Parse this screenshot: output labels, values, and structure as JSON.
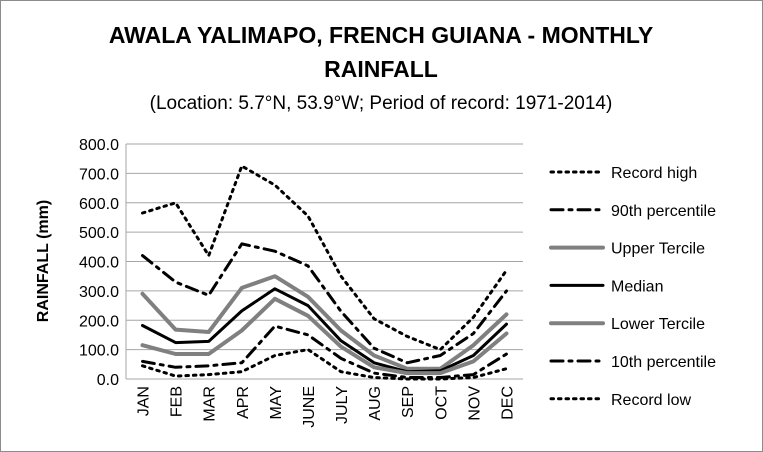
{
  "chart_data": {
    "type": "line",
    "title": "AWALA YALIMAPO, FRENCH GUIANA - MONTHLY RAINFALL",
    "title_lines": [
      "AWALA YALIMAPO, FRENCH GUIANA - MONTHLY",
      "RAINFALL"
    ],
    "subtitle": "(Location: 5.7°N, 53.9°W; Period of record: 1971-2014)",
    "xlabel": "",
    "ylabel": "RAINFALL (mm)",
    "ylim": [
      0,
      800
    ],
    "yticks": [
      "0.0",
      "100.0",
      "200.0",
      "300.0",
      "400.0",
      "500.0",
      "600.0",
      "700.0",
      "800.0"
    ],
    "categories": [
      "JAN",
      "FEB",
      "MAR",
      "APR",
      "MAY",
      "JUNE",
      "JULY",
      "AUG",
      "SEP",
      "OCT",
      "NOV",
      "DEC"
    ],
    "grid": true,
    "legend_position": "right",
    "series": [
      {
        "name": "Record high",
        "color": "#000000",
        "style": "dotted",
        "width": 3,
        "values": [
          565,
          600,
          420,
          725,
          660,
          555,
          350,
          205,
          145,
          100,
          210,
          370
        ]
      },
      {
        "name": "90th percentile",
        "color": "#000000",
        "style": "dashdot",
        "width": 3,
        "values": [
          420,
          330,
          285,
          460,
          435,
          385,
          230,
          105,
          55,
          80,
          155,
          300
        ]
      },
      {
        "name": "Upper Tercile",
        "color": "#808080",
        "style": "solid",
        "width": 4,
        "values": [
          290,
          168,
          160,
          310,
          350,
          280,
          165,
          80,
          35,
          35,
          115,
          220
        ]
      },
      {
        "name": "Median",
        "color": "#000000",
        "style": "solid",
        "width": 3,
        "values": [
          182,
          124,
          128,
          232,
          307,
          250,
          130,
          55,
          25,
          28,
          80,
          187
        ]
      },
      {
        "name": "Lower Tercile",
        "color": "#808080",
        "style": "solid",
        "width": 4,
        "values": [
          115,
          85,
          85,
          165,
          273,
          215,
          110,
          40,
          20,
          20,
          60,
          155
        ]
      },
      {
        "name": "10th percentile",
        "color": "#000000",
        "style": "dashdot",
        "width": 3,
        "values": [
          60,
          40,
          45,
          55,
          180,
          150,
          70,
          20,
          5,
          5,
          15,
          85
        ]
      },
      {
        "name": "Record low",
        "color": "#000000",
        "style": "dotted",
        "width": 3,
        "values": [
          45,
          10,
          15,
          25,
          80,
          100,
          25,
          5,
          0,
          0,
          5,
          35
        ]
      }
    ]
  }
}
